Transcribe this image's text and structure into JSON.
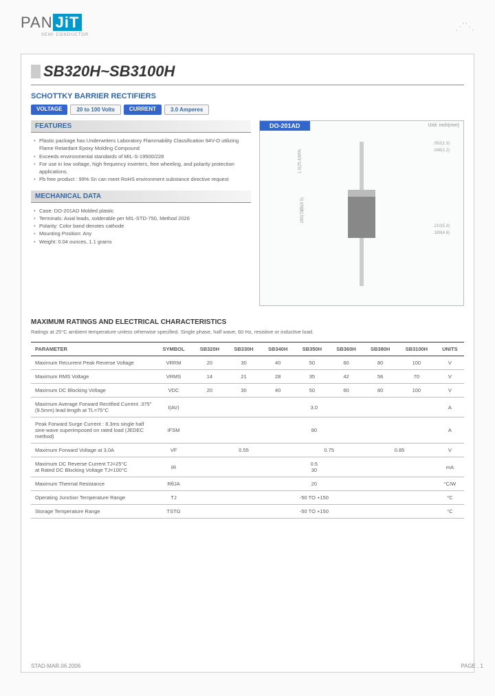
{
  "logo": {
    "part1": "PAN",
    "part2": "JiT",
    "sub": "SEMI\nCONDUCTOR"
  },
  "title": "SB320H~SB3100H",
  "subtitle": "SCHOTTKY BARRIER RECTIFIERS",
  "specs": {
    "voltage_label": "VOLTAGE",
    "voltage_val": "20 to 100 Volts",
    "current_label": "CURRENT",
    "current_val": "3.0 Amperes"
  },
  "features_head": "FEATURES",
  "features": [
    "Plastic package has Underwriters Laboratory Flammability Classification 94V-O utilizing Flame Retardant Epoxy Molding Compound",
    "Exceeds environmental standards of MIL-S-19500/228",
    "For use in low voltage, high frequency inverters, free wheeling, and polarity protection applications.",
    "Pb free product : 99% Sn can meet RoHS environment substance directive request"
  ],
  "mech_head": "MECHANICAL DATA",
  "mech": [
    "Case: DO-201AD Molded plastic",
    "Terminals: Axial leads, solderable per MIL-STD-750, Method 2026",
    "Polarity: Color band denotes cathode",
    "Mounting Position: Any",
    "Weight: 0.04 ounces, 1.1 grams"
  ],
  "pkg": {
    "name": "DO-201AD",
    "unit": "Unit: inch(mm)",
    "dims": {
      "d1": ".052(1.3)",
      "d2": ".048(1.2)",
      "d3": "1.0(25.4)MIN.",
      "d4": ".375(9.5)",
      "d5": ".285(7.2)",
      "d6": ".210(5.3)",
      "d7": ".189(4.8)"
    }
  },
  "ratings_title": "MAXIMUM RATINGS AND ELECTRICAL CHARACTERISTICS",
  "ratings_note": "Ratings at 25°C ambient temperature unless otherwise specified. Single phase, half wave, 60 Hz, resistive or inductive load.",
  "table": {
    "headers": [
      "PARAMETER",
      "SYMBOL",
      "SB320H",
      "SB330H",
      "SB340H",
      "SB350H",
      "SB360H",
      "SB380H",
      "SB3100H",
      "UNITS"
    ],
    "rows": [
      {
        "p": "Maximum Recurrent Peak Reverse Voltage",
        "s": "VRRM",
        "v": [
          "20",
          "30",
          "40",
          "50",
          "60",
          "80",
          "100"
        ],
        "u": "V"
      },
      {
        "p": "Maximum RMS Voltage",
        "s": "VRMS",
        "v": [
          "14",
          "21",
          "28",
          "35",
          "42",
          "56",
          "70"
        ],
        "u": "V"
      },
      {
        "p": "Maximum DC Blocking Voltage",
        "s": "VDC",
        "v": [
          "20",
          "30",
          "40",
          "50",
          "60",
          "80",
          "100"
        ],
        "u": "V"
      },
      {
        "p": "Maximum Average Forward Rectified Current .375\"(9.5mm) lead length at TL=75°C",
        "s": "I(AV)",
        "span": "3.0",
        "u": "A"
      },
      {
        "p": "Peak Forward Surge Current : 8.3ms single half sine-wave superimposed on rated load (JEDEC method)",
        "s": "IFSM",
        "span": "80",
        "u": "A"
      },
      {
        "p": "Maximum Forward Voltage at 3.0A",
        "s": "VF",
        "groups": [
          {
            "c": 3,
            "v": "0.55"
          },
          {
            "c": 2,
            "v": "0.75"
          },
          {
            "c": 2,
            "v": "0.85"
          }
        ],
        "u": "V"
      },
      {
        "p": "Maximum DC Reverse Current TJ=25°C\nat Rated DC Blocking Voltage TJ=100°C",
        "s": "IR",
        "span": "0.5\n30",
        "u": "mA"
      },
      {
        "p": "Maximum Thermal Resistance",
        "s": "RθJA",
        "span": "20",
        "u": "°C/W"
      }
    ],
    "sep_rows": [
      {
        "p": "Operating Junction Temperature Range",
        "s": "TJ",
        "span": "-50 TO +150",
        "u": "°C"
      },
      {
        "p": "Storage Temperature Range",
        "s": "TSTG",
        "span": "-50 TO +150",
        "u": "°C"
      }
    ]
  },
  "footer": {
    "left": "STAD-MAR.06.2006",
    "right": "PAGE . 1"
  }
}
